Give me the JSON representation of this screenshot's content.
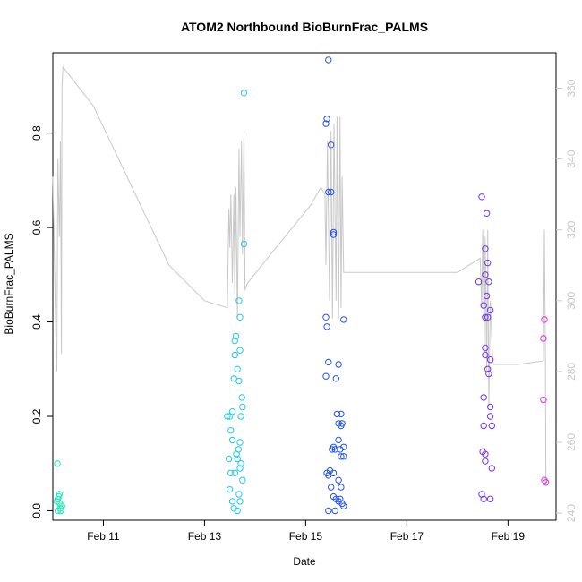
{
  "chart_data": {
    "type": "scatter",
    "title": "ATOM2 Northbound BioBurnFrac_PALMS",
    "xlabel": "Date",
    "ylabel": "BioBurnFrac_PALMS",
    "x_unit": "days since Feb 10 00:00",
    "xlim": [
      0,
      9.95
    ],
    "ylim": [
      -0.02,
      0.97
    ],
    "y_ticks": [
      0.0,
      0.2,
      0.4,
      0.6,
      0.8
    ],
    "x_ticks": [
      {
        "value": 1,
        "label": "Feb 11"
      },
      {
        "value": 3,
        "label": "Feb 13"
      },
      {
        "value": 5,
        "label": "Feb 15"
      },
      {
        "value": 7,
        "label": "Feb 17"
      },
      {
        "value": 9,
        "label": "Feb 19"
      }
    ],
    "y2": {
      "label": "",
      "lim": [
        238,
        370
      ],
      "ticks": [
        240,
        260,
        280,
        300,
        320,
        340,
        360
      ],
      "color": "#c8c8c8"
    },
    "grid": false,
    "legend": "none",
    "series": [
      {
        "color": "#1de9b6",
        "points": [
          [
            0.08,
            0.02
          ],
          [
            0.1,
            0.0
          ],
          [
            0.12,
            0.03
          ],
          [
            0.14,
            0.015
          ],
          [
            0.16,
            0.0
          ],
          [
            0.18,
            0.01
          ],
          [
            0.1,
            0.025
          ],
          [
            0.15,
            0.005
          ],
          [
            0.13,
            0.035
          ],
          [
            0.09,
            0.1
          ]
        ]
      },
      {
        "color": "#22c8e8",
        "points": [
          [
            3.45,
            0.2
          ],
          [
            3.5,
            0.2
          ],
          [
            3.48,
            0.11
          ],
          [
            3.52,
            0.08
          ],
          [
            3.55,
            0.02
          ],
          [
            3.5,
            0.045
          ],
          [
            3.52,
            0.17
          ],
          [
            3.55,
            0.15
          ],
          [
            3.58,
            0.28
          ],
          [
            3.55,
            0.21
          ],
          [
            3.6,
            0.36
          ],
          [
            3.62,
            0.37
          ],
          [
            3.6,
            0.33
          ],
          [
            3.63,
            0.12
          ],
          [
            3.65,
            0.11
          ],
          [
            3.6,
            0.08
          ],
          [
            3.58,
            0.005
          ],
          [
            3.65,
            0.0
          ],
          [
            3.68,
            0.035
          ],
          [
            3.7,
            0.02
          ],
          [
            3.7,
            0.145
          ],
          [
            3.67,
            0.13
          ],
          [
            3.72,
            0.1
          ],
          [
            3.7,
            0.09
          ],
          [
            3.75,
            0.065
          ],
          [
            3.65,
            0.3
          ],
          [
            3.68,
            0.275
          ],
          [
            3.72,
            0.2
          ],
          [
            3.75,
            0.22
          ],
          [
            3.74,
            0.24
          ],
          [
            3.7,
            0.34
          ],
          [
            3.68,
            0.445
          ],
          [
            3.7,
            0.41
          ],
          [
            3.78,
            0.565
          ],
          [
            3.78,
            0.885
          ]
        ]
      },
      {
        "color": "#2255ee",
        "points": [
          [
            5.45,
            0.955
          ],
          [
            5.42,
            0.83
          ],
          [
            5.4,
            0.82
          ],
          [
            5.5,
            0.775
          ],
          [
            5.45,
            0.675
          ],
          [
            5.5,
            0.675
          ],
          [
            5.55,
            0.59
          ],
          [
            5.55,
            0.585
          ],
          [
            5.4,
            0.41
          ],
          [
            5.42,
            0.39
          ],
          [
            5.75,
            0.405
          ],
          [
            5.45,
            0.315
          ],
          [
            5.65,
            0.31
          ],
          [
            5.4,
            0.285
          ],
          [
            5.6,
            0.28
          ],
          [
            5.62,
            0.205
          ],
          [
            5.7,
            0.205
          ],
          [
            5.7,
            0.18
          ],
          [
            5.65,
            0.185
          ],
          [
            5.72,
            0.185
          ],
          [
            5.65,
            0.15
          ],
          [
            5.68,
            0.13
          ],
          [
            5.75,
            0.135
          ],
          [
            5.55,
            0.135
          ],
          [
            5.58,
            0.13
          ],
          [
            5.52,
            0.13
          ],
          [
            5.7,
            0.115
          ],
          [
            5.75,
            0.115
          ],
          [
            5.42,
            0.08
          ],
          [
            5.48,
            0.085
          ],
          [
            5.55,
            0.08
          ],
          [
            5.45,
            0.075
          ],
          [
            5.65,
            0.065
          ],
          [
            5.7,
            0.05
          ],
          [
            5.5,
            0.05
          ],
          [
            5.55,
            0.03
          ],
          [
            5.6,
            0.025
          ],
          [
            5.68,
            0.025
          ],
          [
            5.72,
            0.015
          ],
          [
            5.75,
            0.01
          ],
          [
            5.65,
            0.02
          ],
          [
            5.58,
            0.0
          ],
          [
            5.45,
            0.0
          ]
        ]
      },
      {
        "color": "#7733ee",
        "points": [
          [
            8.48,
            0.665
          ],
          [
            8.58,
            0.63
          ],
          [
            8.55,
            0.555
          ],
          [
            8.6,
            0.525
          ],
          [
            8.55,
            0.5
          ],
          [
            8.62,
            0.485
          ],
          [
            8.42,
            0.485
          ],
          [
            8.52,
            0.435
          ],
          [
            8.55,
            0.41
          ],
          [
            8.6,
            0.41
          ],
          [
            8.58,
            0.455
          ],
          [
            8.65,
            0.425
          ],
          [
            8.55,
            0.345
          ],
          [
            8.55,
            0.33
          ],
          [
            8.65,
            0.32
          ],
          [
            8.62,
            0.29
          ],
          [
            8.6,
            0.3
          ],
          [
            8.52,
            0.24
          ],
          [
            8.65,
            0.22
          ],
          [
            8.65,
            0.2
          ],
          [
            8.68,
            0.18
          ],
          [
            8.52,
            0.18
          ],
          [
            8.5,
            0.125
          ],
          [
            8.55,
            0.12
          ],
          [
            8.55,
            0.105
          ],
          [
            8.68,
            0.09
          ],
          [
            8.48,
            0.035
          ],
          [
            8.52,
            0.025
          ],
          [
            8.65,
            0.025
          ]
        ]
      },
      {
        "color": "#dd33dd",
        "points": [
          [
            9.72,
            0.405
          ],
          [
            9.7,
            0.365
          ],
          [
            9.7,
            0.235
          ],
          [
            9.72,
            0.065
          ],
          [
            9.75,
            0.06
          ]
        ]
      }
    ],
    "secondary_line": {
      "color": "#c8c8c8",
      "points": [
        [
          0.0,
          335
        ],
        [
          0.03,
          312
        ],
        [
          0.06,
          290
        ],
        [
          0.08,
          280
        ],
        [
          0.1,
          340
        ],
        [
          0.13,
          318
        ],
        [
          0.15,
          345
        ],
        [
          0.17,
          285
        ],
        [
          0.18,
          360
        ],
        [
          0.2,
          366
        ],
        [
          0.8,
          355
        ],
        [
          2.3,
          310
        ],
        [
          3.0,
          300
        ],
        [
          3.45,
          298
        ],
        [
          3.48,
          326
        ],
        [
          3.5,
          315
        ],
        [
          3.52,
          330
        ],
        [
          3.55,
          305
        ],
        [
          3.58,
          330
        ],
        [
          3.6,
          300
        ],
        [
          3.62,
          332
        ],
        [
          3.65,
          295
        ],
        [
          3.68,
          343
        ],
        [
          3.7,
          318
        ],
        [
          3.73,
          345
        ],
        [
          3.75,
          313
        ],
        [
          3.78,
          348
        ],
        [
          3.8,
          303
        ],
        [
          3.85,
          305
        ],
        [
          4.3,
          313
        ],
        [
          5.1,
          327
        ],
        [
          5.3,
          332
        ],
        [
          5.38,
          330
        ],
        [
          5.4,
          310
        ],
        [
          5.43,
          345
        ],
        [
          5.47,
          300
        ],
        [
          5.5,
          348
        ],
        [
          5.53,
          295
        ],
        [
          5.56,
          350
        ],
        [
          5.6,
          300
        ],
        [
          5.62,
          352
        ],
        [
          5.65,
          295
        ],
        [
          5.68,
          352
        ],
        [
          5.7,
          298
        ],
        [
          5.72,
          335
        ],
        [
          5.75,
          308
        ],
        [
          6.5,
          308
        ],
        [
          8.0,
          308
        ],
        [
          8.45,
          312
        ],
        [
          8.48,
          298
        ],
        [
          8.5,
          320
        ],
        [
          8.53,
          285
        ],
        [
          8.55,
          318
        ],
        [
          8.58,
          280
        ],
        [
          8.6,
          320
        ],
        [
          8.62,
          270
        ],
        [
          8.65,
          300
        ],
        [
          8.7,
          282
        ],
        [
          9.2,
          282
        ],
        [
          9.7,
          283
        ],
        [
          9.72,
          320
        ],
        [
          9.74,
          285
        ],
        [
          9.75,
          248
        ]
      ]
    }
  }
}
